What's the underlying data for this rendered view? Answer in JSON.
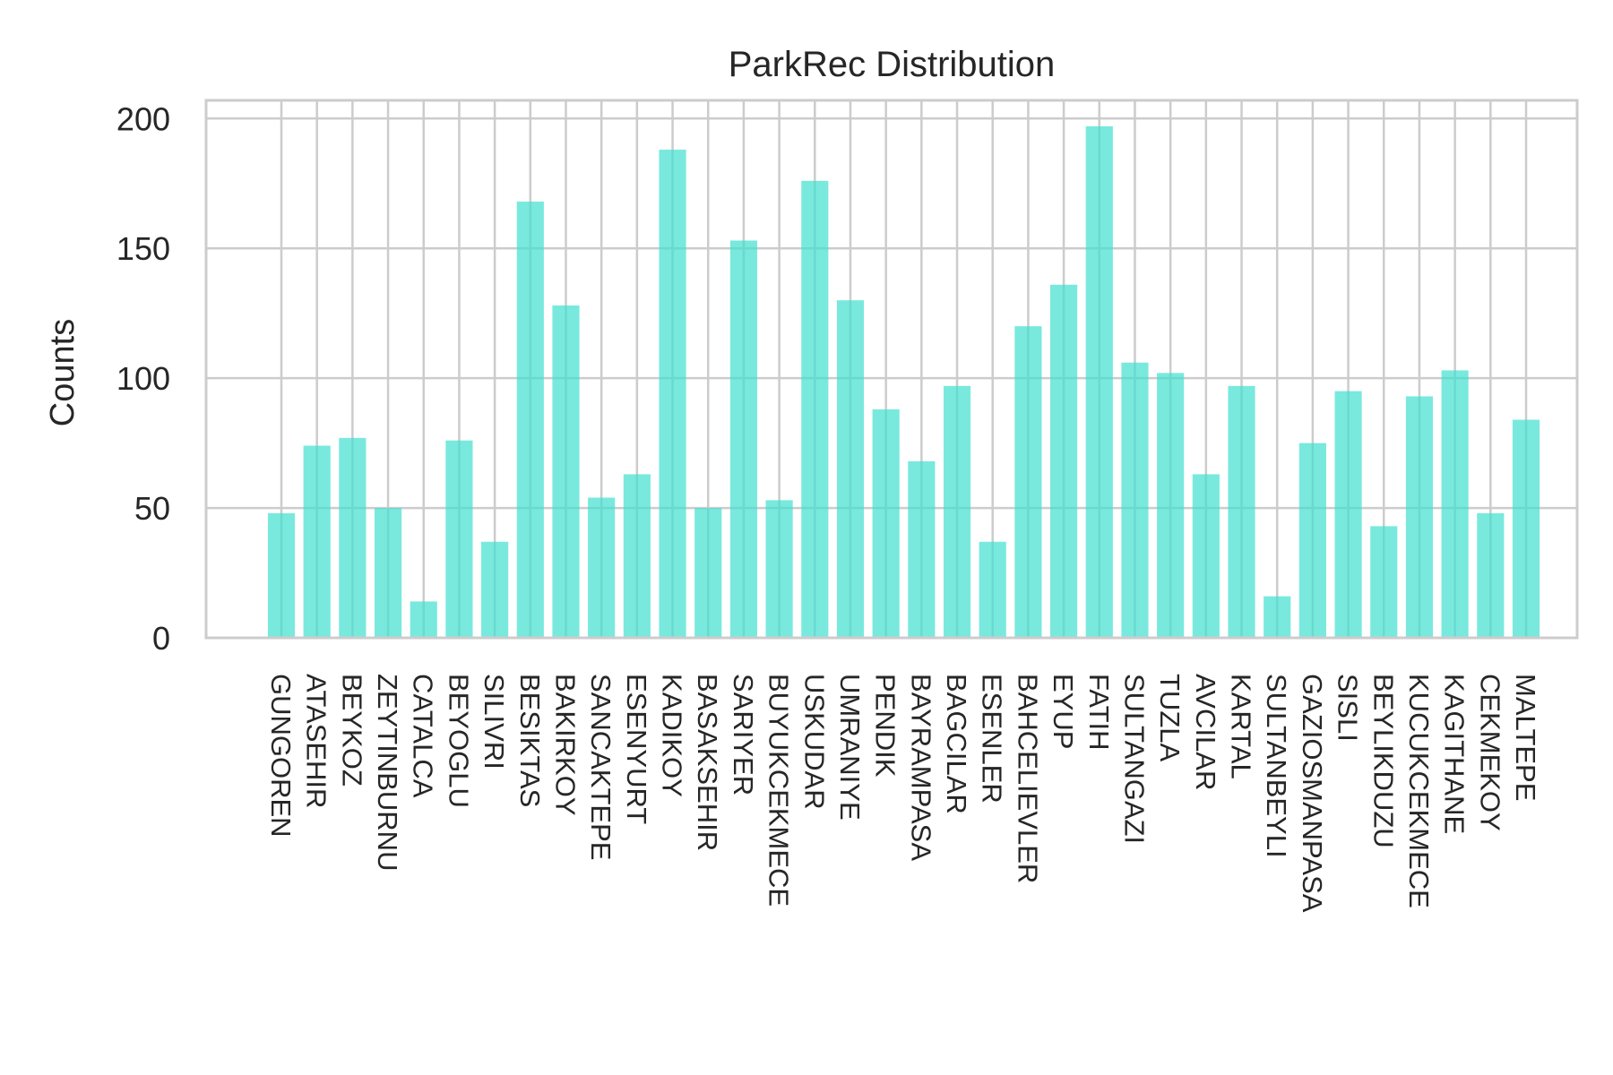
{
  "chart_data": {
    "type": "bar",
    "title": "ParkRec Distribution",
    "xlabel": "",
    "ylabel": "Counts",
    "ylim": [
      0,
      207
    ],
    "yticks": [
      0,
      50,
      100,
      150,
      200
    ],
    "grid": true,
    "bar_color": "#40E0D0",
    "bar_opacity": 0.7,
    "categories": [
      "GUNGOREN",
      "ATASEHIR",
      "BEYKOZ",
      "ZEYTINBURNU",
      "CATALCA",
      "BEYOGLU",
      "SILIVRI",
      "BESIKTAS",
      "BAKIRKOY",
      "SANCAKTEPE",
      "ESENYURT",
      "KADIKOY",
      "BASAKSEHIR",
      "SARIYER",
      "BUYUKCEKMECE",
      "USKUDAR",
      "UMRANIYE",
      "PENDIK",
      "BAYRAMPASA",
      "BAGCILAR",
      "ESENLER",
      "BAHCELIEVLER",
      "EYUP",
      "FATIH",
      "SULTANGAZI",
      "TUZLA",
      "AVCILAR",
      "KARTAL",
      "SULTANBEYLI",
      "GAZIOSMANPASA",
      "SISLI",
      "BEYLIKDUZU",
      "KUCUKCEKMECE",
      "KAGITHANE",
      "CEKMEKOY",
      "MALTEPE"
    ],
    "values": [
      48,
      74,
      77,
      50,
      14,
      76,
      37,
      168,
      128,
      54,
      63,
      188,
      50,
      153,
      53,
      176,
      130,
      88,
      68,
      97,
      37,
      120,
      136,
      197,
      106,
      102,
      63,
      97,
      16,
      75,
      95,
      43,
      93,
      103,
      48,
      84
    ]
  }
}
